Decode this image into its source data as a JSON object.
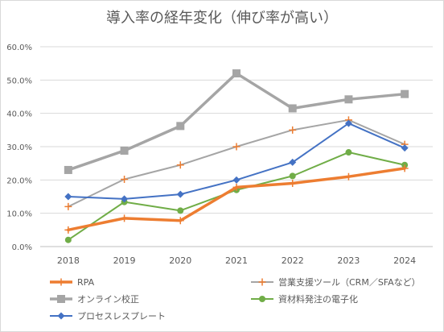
{
  "chart_data": {
    "type": "line",
    "title": "導入率の経年変化（伸び率が高い）",
    "xlabel": "",
    "ylabel": "",
    "categories": [
      "2018",
      "2019",
      "2020",
      "2021",
      "2022",
      "2023",
      "2024"
    ],
    "ylim": [
      0,
      60
    ],
    "yticks": [
      "0.0%",
      "10.0%",
      "20.0%",
      "30.0%",
      "40.0%",
      "50.0%",
      "60.0%"
    ],
    "grid": true,
    "legend_position": "bottom",
    "series": [
      {
        "name": "RPA",
        "values": [
          5.0,
          8.5,
          7.8,
          17.8,
          19.0,
          21.0,
          23.5
        ],
        "color": "#ed7d31",
        "marker": "plus"
      },
      {
        "name": "営業支援ツール（CRM／SFAなど）",
        "values": [
          12.0,
          20.2,
          24.5,
          30.0,
          35.0,
          38.0,
          30.7
        ],
        "color": "#a5a5a5",
        "marker": "plus"
      },
      {
        "name": "オンライン校正",
        "values": [
          23.0,
          28.8,
          36.2,
          52.0,
          41.5,
          44.2,
          45.8
        ],
        "color": "#a5a5a5",
        "marker": "square"
      },
      {
        "name": "資材料発注の電子化",
        "values": [
          2.0,
          13.4,
          10.8,
          17.0,
          21.2,
          28.3,
          24.5
        ],
        "color": "#70ad47",
        "marker": "circle"
      },
      {
        "name": "プロセスレスプレート",
        "values": [
          15.0,
          14.3,
          15.7,
          20.0,
          25.3,
          37.0,
          29.6
        ],
        "color": "#4472c4",
        "marker": "diamond"
      }
    ]
  }
}
